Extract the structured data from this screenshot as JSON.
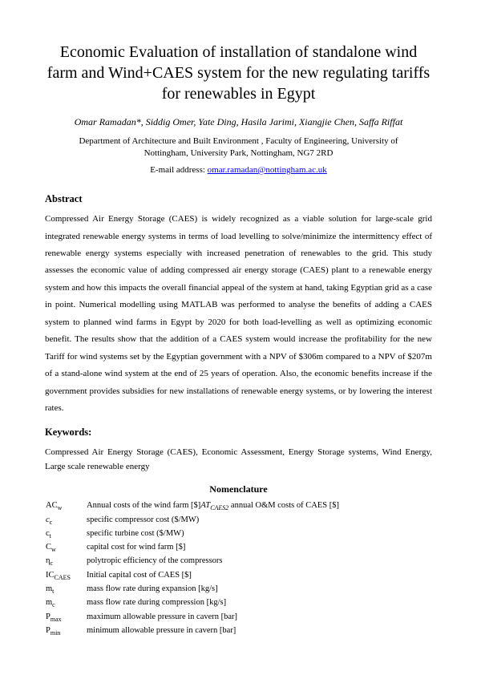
{
  "title": "Economic Evaluation of installation of standalone wind farm and Wind+CAES system for the new regulating tariffs for renewables in Egypt",
  "authors": "Omar Ramadan*, Siddig Omer, Yate Ding, Hasila Jarimi, Xiangjie Chen, Saffa Riffat",
  "affiliation_line1": "Department of Architecture and Built Environment , Faculty of Engineering, University of",
  "affiliation_line2": "Nottingham, University Park, Nottingham, NG7 2RD",
  "email_label": "E-mail address: ",
  "email": "omar.ramadan@nottingham.ac.uk",
  "headings": {
    "abstract": "Abstract",
    "keywords": "Keywords:",
    "nomenclature": "Nomenclature"
  },
  "abstract": "Compressed Air Energy Storage (CAES) is widely recognized as a viable solution for large-scale grid integrated renewable energy systems in terms of load levelling to solve/minimize the intermittency effect of renewable energy systems especially with increased penetration of renewables to the grid. This study assesses the economic value of adding compressed air energy storage (CAES) plant to a renewable energy system and how this impacts the overall financial appeal of the system at hand, taking Egyptian grid as a case in point. Numerical modelling using MATLAB was performed to analyse the benefits of adding a CAES system to planned wind farms in Egypt by 2020 for both load-levelling as well as optimizing economic benefit. The results show that the addition of a CAES system would increase the profitability for the new Tariff for wind systems set by the Egyptian government with a NPV of $306m compared to a NPV of $207m of a stand-alone wind system at the end of 25 years of operation. Also, the economic benefits increase if the government provides subsidies for new installations of renewable energy systems, or by lowering the interest rates.",
  "keywords": "Compressed Air Energy Storage (CAES), Economic Assessment, Energy Storage systems, Wind Energy, Large scale renewable energy",
  "nomenclature": [
    {
      "sym_html": "AC<sub>w</sub>",
      "desc_html": "Annual costs of the wind farm [$]<i>AT<sub>CAES2</sub></i> annual O&amp;M costs of CAES [$]"
    },
    {
      "sym_html": "<i>c</i><sub>c</sub>",
      "desc_html": "specific compressor cost ($/MW)"
    },
    {
      "sym_html": "c<sub>t</sub>",
      "desc_html": "specific turbine cost ($/MW)"
    },
    {
      "sym_html": "C<sub>w</sub>",
      "desc_html": "capital cost for wind farm [$]"
    },
    {
      "sym_html": "η<sub>c</sub>",
      "desc_html": "polytropic efficiency of the compressors"
    },
    {
      "sym_html": "IC<sub>CAES</sub>",
      "desc_html": "Initial capital cost of CAES [$]"
    },
    {
      "sym_html": "m<sub>t</sub>",
      "desc_html": "mass flow rate during expansion [kg/s]"
    },
    {
      "sym_html": "m<sub>c</sub>",
      "desc_html": "mass flow rate during compression [kg/s]"
    },
    {
      "sym_html": "P<sub>max</sub>",
      "desc_html": "maximum allowable pressure in cavern [bar]"
    },
    {
      "sym_html": "P<sub>min</sub>",
      "desc_html": "minimum allowable pressure in cavern [bar]"
    }
  ]
}
